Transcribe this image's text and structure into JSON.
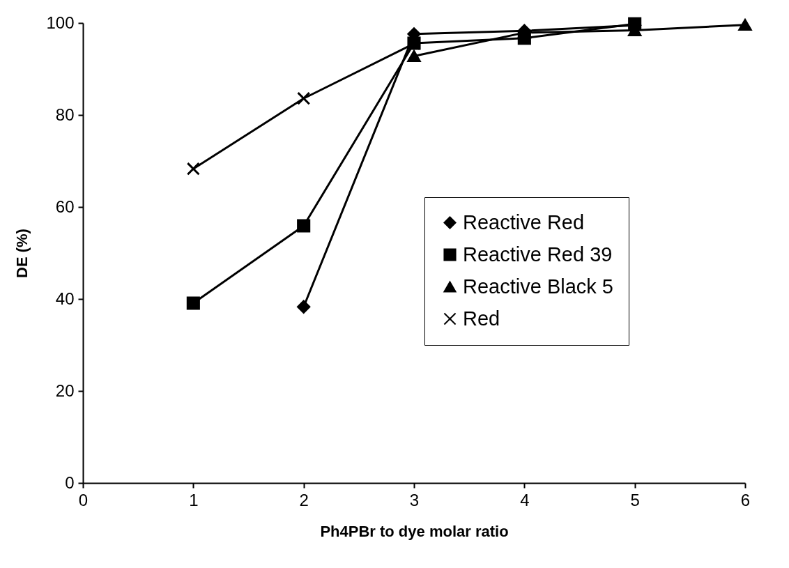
{
  "chart_data": {
    "type": "line",
    "xlabel": "Ph4PBr to dye molar ratio",
    "ylabel": "DE (%)",
    "xlim": [
      0,
      6
    ],
    "xticks": [
      0,
      1,
      2,
      3,
      4,
      5,
      6
    ],
    "ylim": [
      0,
      100
    ],
    "yticks": [
      0,
      20,
      40,
      60,
      80,
      100
    ],
    "grid": false,
    "legend": "right",
    "line_style": "solid",
    "series": [
      {
        "name": "Reactive Red",
        "color": "#000000",
        "marker": "diamond",
        "x": [
          2,
          3,
          4,
          5
        ],
        "values": [
          38.3,
          97.6,
          98.3,
          99.5
        ]
      },
      {
        "name": "Reactive Red 39",
        "color": "#000000",
        "marker": "square",
        "x": [
          1,
          2,
          3,
          4,
          5
        ],
        "values": [
          39.1,
          55.9,
          95.6,
          96.7,
          99.8
        ]
      },
      {
        "name": "Reactive Black 5",
        "color": "#000000",
        "marker": "triangle",
        "x": [
          3,
          4,
          5,
          6
        ],
        "values": [
          92.8,
          97.9,
          98.4,
          99.6
        ]
      },
      {
        "name": "Red",
        "color": "#000000",
        "marker": "cross",
        "x": [
          1,
          2,
          3
        ],
        "values": [
          68.3,
          83.6,
          95.5
        ]
      }
    ]
  }
}
